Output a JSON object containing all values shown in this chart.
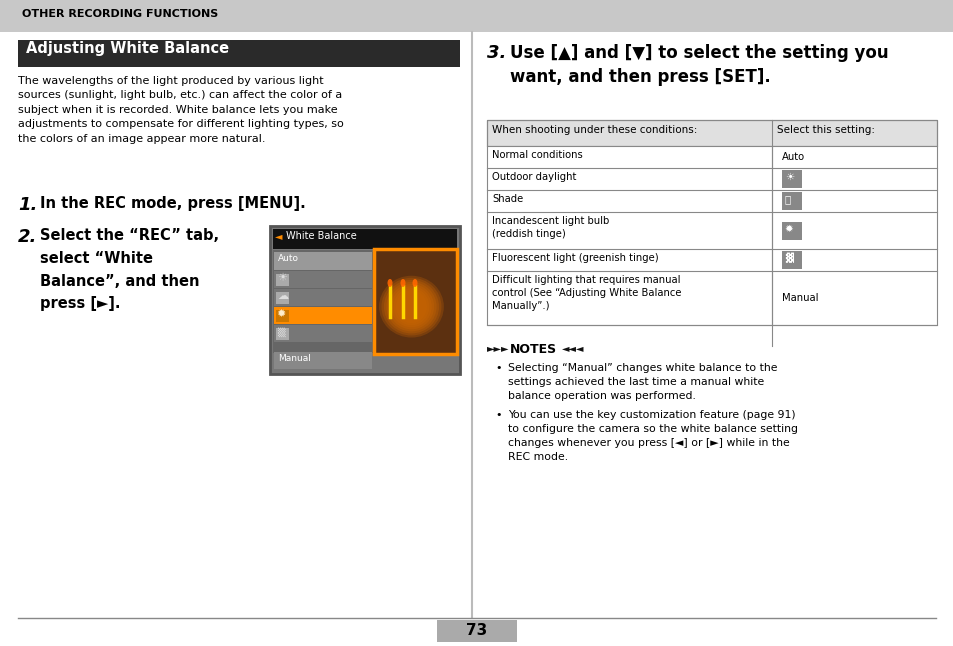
{
  "bg_color": "#ffffff",
  "header_bg": "#c8c8c8",
  "header_text": "OTHER RECORDING FUNCTIONS",
  "title_bg": "#2a2a2a",
  "title_text": "Adjusting White Balance",
  "title_text_color": "#ffffff",
  "body_text": "The wavelengths of the light produced by various light\nsources (sunlight, light bulb, etc.) can affect the color of a\nsubject when it is recorded. White balance lets you make\nadjustments to compensate for different lighting types, so\nthe colors of an image appear more natural.",
  "step1_text": "In the REC mode, press [MENU].",
  "step2_text": "Select the “REC” tab,\nselect “White\nBalance”, and then\npress [►].",
  "step3_text": "Use [▲] and [▼] to select the setting you\nwant, and then press [SET].",
  "table_header_col1": "When shooting under these conditions:",
  "table_header_col2": "Select this setting:",
  "table_rows_col1": [
    "Normal conditions",
    "Outdoor daylight",
    "Shade",
    "Incandescent light bulb\n(reddish tinge)",
    "Fluorescent light (greenish tinge)",
    "Difficult lighting that requires manual\ncontrol (See “Adjusting White Balance\nManually”.)"
  ],
  "table_rows_col2": [
    "Auto",
    "sun_icon",
    "shade_icon",
    "bulb_icon",
    "fluor_icon",
    "Manual"
  ],
  "notes": [
    "Selecting “Manual” changes white balance to the\nsettings achieved the last time a manual white\nbalance operation was performed.",
    "You can use the key customization feature (page 91)\nto configure the camera so the white balance setting\nchanges whenever you press [◄] or [►] while in the\nREC mode."
  ],
  "page_number": "73",
  "orange": "#FF8C00",
  "dark_orange": "#CC6600"
}
